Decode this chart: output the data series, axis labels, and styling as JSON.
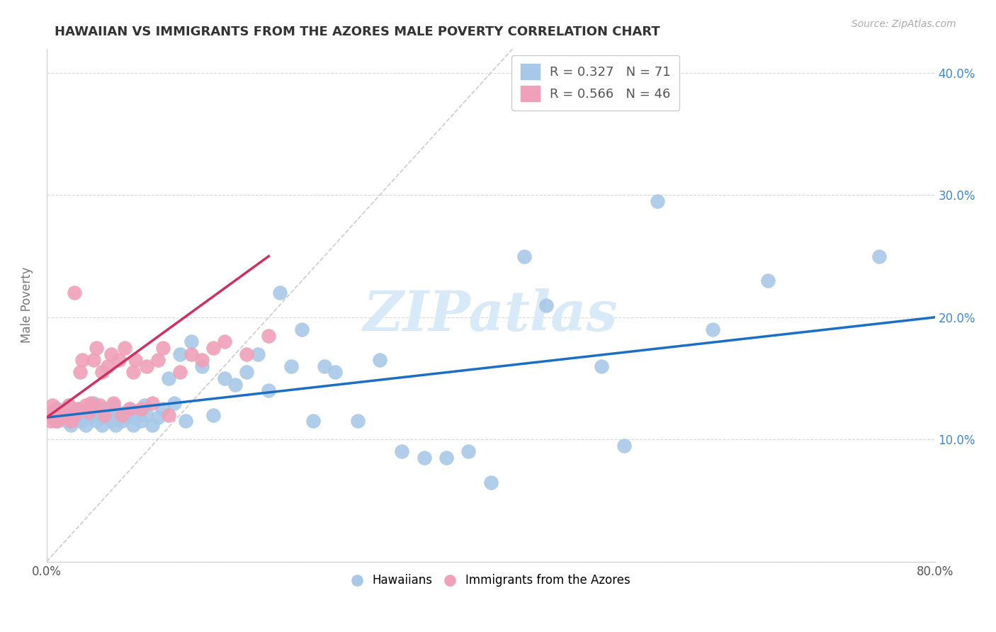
{
  "title": "HAWAIIAN VS IMMIGRANTS FROM THE AZORES MALE POVERTY CORRELATION CHART",
  "source_text": "Source: ZipAtlas.com",
  "ylabel": "Male Poverty",
  "xlim": [
    0.0,
    0.8
  ],
  "ylim": [
    0.0,
    0.42
  ],
  "legend_blue_r": "0.327",
  "legend_blue_n": "71",
  "legend_pink_r": "0.566",
  "legend_pink_n": "46",
  "blue_color": "#a8c8e8",
  "pink_color": "#f0a0b8",
  "blue_line_color": "#1a6fc4",
  "pink_line_color": "#d03060",
  "watermark_color": "#d8eaf8",
  "background_color": "#ffffff",
  "grid_color": "#d8d8d8",
  "hawaiians_x": [
    0.005,
    0.008,
    0.01,
    0.012,
    0.015,
    0.018,
    0.02,
    0.022,
    0.025,
    0.028,
    0.03,
    0.032,
    0.035,
    0.038,
    0.04,
    0.042,
    0.045,
    0.048,
    0.05,
    0.052,
    0.055,
    0.058,
    0.06,
    0.062,
    0.065,
    0.068,
    0.07,
    0.072,
    0.075,
    0.078,
    0.08,
    0.082,
    0.085,
    0.088,
    0.09,
    0.095,
    0.1,
    0.105,
    0.11,
    0.115,
    0.12,
    0.125,
    0.13,
    0.14,
    0.15,
    0.16,
    0.17,
    0.18,
    0.19,
    0.2,
    0.21,
    0.22,
    0.23,
    0.24,
    0.25,
    0.26,
    0.28,
    0.3,
    0.32,
    0.34,
    0.36,
    0.38,
    0.4,
    0.43,
    0.45,
    0.5,
    0.52,
    0.55,
    0.6,
    0.65,
    0.75
  ],
  "hawaiians_y": [
    0.12,
    0.115,
    0.125,
    0.118,
    0.122,
    0.115,
    0.128,
    0.112,
    0.118,
    0.125,
    0.115,
    0.12,
    0.112,
    0.118,
    0.125,
    0.13,
    0.115,
    0.12,
    0.112,
    0.125,
    0.118,
    0.115,
    0.128,
    0.112,
    0.122,
    0.115,
    0.12,
    0.118,
    0.125,
    0.112,
    0.118,
    0.122,
    0.115,
    0.128,
    0.12,
    0.112,
    0.118,
    0.125,
    0.15,
    0.13,
    0.17,
    0.115,
    0.18,
    0.16,
    0.12,
    0.15,
    0.145,
    0.155,
    0.17,
    0.14,
    0.22,
    0.16,
    0.19,
    0.115,
    0.16,
    0.155,
    0.115,
    0.165,
    0.09,
    0.085,
    0.085,
    0.09,
    0.065,
    0.25,
    0.21,
    0.16,
    0.095,
    0.295,
    0.19,
    0.23,
    0.25
  ],
  "azores_x": [
    0.002,
    0.003,
    0.005,
    0.006,
    0.008,
    0.01,
    0.012,
    0.015,
    0.018,
    0.02,
    0.022,
    0.025,
    0.025,
    0.028,
    0.03,
    0.032,
    0.035,
    0.038,
    0.04,
    0.042,
    0.045,
    0.048,
    0.05,
    0.052,
    0.055,
    0.058,
    0.06,
    0.065,
    0.068,
    0.07,
    0.075,
    0.078,
    0.08,
    0.085,
    0.09,
    0.095,
    0.1,
    0.105,
    0.11,
    0.12,
    0.13,
    0.14,
    0.15,
    0.16,
    0.18,
    0.2
  ],
  "azores_y": [
    0.12,
    0.115,
    0.128,
    0.12,
    0.125,
    0.115,
    0.118,
    0.122,
    0.118,
    0.128,
    0.115,
    0.22,
    0.12,
    0.125,
    0.155,
    0.165,
    0.128,
    0.122,
    0.13,
    0.165,
    0.175,
    0.128,
    0.155,
    0.12,
    0.16,
    0.17,
    0.13,
    0.165,
    0.12,
    0.175,
    0.125,
    0.155,
    0.165,
    0.125,
    0.16,
    0.13,
    0.165,
    0.175,
    0.12,
    0.155,
    0.17,
    0.165,
    0.175,
    0.18,
    0.17,
    0.185
  ],
  "blue_line_x": [
    0.0,
    0.8
  ],
  "blue_line_y": [
    0.118,
    0.2
  ],
  "pink_line_x": [
    0.0,
    0.2
  ],
  "pink_line_y": [
    0.118,
    0.25
  ],
  "diag_line_x": [
    0.0,
    0.42
  ],
  "diag_line_y": [
    0.0,
    0.42
  ]
}
